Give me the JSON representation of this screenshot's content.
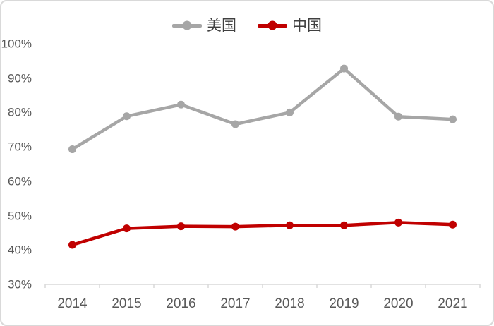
{
  "chart_data": {
    "type": "line",
    "x": [
      "2014",
      "2015",
      "2016",
      "2017",
      "2018",
      "2019",
      "2020",
      "2021"
    ],
    "series": [
      {
        "name": "美国",
        "color": "#A6A6A6",
        "values": [
          69.3,
          78.9,
          82.3,
          76.6,
          80.0,
          92.8,
          78.8,
          78.0
        ]
      },
      {
        "name": "中国",
        "color": "#C00000",
        "values": [
          41.5,
          46.3,
          46.9,
          46.8,
          47.2,
          47.2,
          48.0,
          47.4
        ]
      }
    ],
    "y_tick_labels": [
      "100%",
      "90%",
      "80%",
      "70%",
      "60%",
      "50%",
      "40%",
      "30%"
    ],
    "ylim": [
      30,
      100
    ],
    "y_step": 10,
    "title": "",
    "xlabel": "",
    "ylabel": "",
    "grid": false,
    "legend_position": "top",
    "marker": "circle"
  },
  "colors": {
    "axis_line": "#D9D9D9",
    "tick_text": "#595959",
    "legend_text": "#404040",
    "frame_border": "#D9D9D9",
    "background": "#FFFFFF"
  }
}
